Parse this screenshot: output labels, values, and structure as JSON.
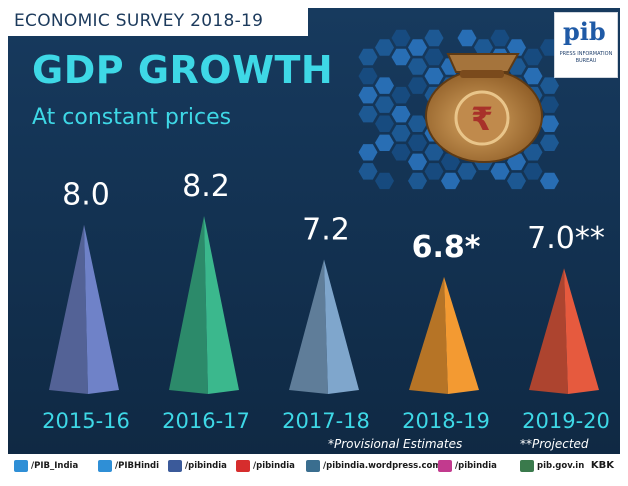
{
  "banner": "ECONOMIC SURVEY 2018-19",
  "header": {
    "title": "GDP GROWTH",
    "subtitle": "At constant prices"
  },
  "logo": {
    "mark": "pib",
    "text": "PRESS INFORMATION BUREAU"
  },
  "chart_data": {
    "type": "bar",
    "title": "GDP GROWTH",
    "subtitle": "At constant prices",
    "categories": [
      "2015-16",
      "2016-17",
      "2017-18",
      "2018-19",
      "2019-20"
    ],
    "values": [
      8.0,
      8.2,
      7.2,
      6.8,
      7.0
    ],
    "value_labels": [
      "8.0",
      "8.2",
      "7.2",
      "6.8*",
      "7.0**"
    ],
    "colors": [
      "#6f82c8",
      "#3bb88d",
      "#7fa6cc",
      "#f39a32",
      "#e65a3e"
    ],
    "notes": [
      "*Provisional Estimates",
      "**Projected"
    ]
  },
  "footer": {
    "items": [
      {
        "icon": "twitter-icon",
        "label": "/PIB_India",
        "color": "#2f8fd6"
      },
      {
        "icon": "twitter-icon",
        "label": "/PIBHindi",
        "color": "#2f8fd6"
      },
      {
        "icon": "facebook-icon",
        "label": "/pibindia",
        "color": "#3b5a9a"
      },
      {
        "icon": "youtube-icon",
        "label": "/pibindia",
        "color": "#d62d2d"
      },
      {
        "icon": "wordpress-icon",
        "label": "/pibindia.wordpress.com",
        "color": "#3a6e8f"
      },
      {
        "icon": "instagram-icon",
        "label": "/pibindia",
        "color": "#c23a8e"
      },
      {
        "icon": "globe-icon",
        "label": "pib.gov.in",
        "color": "#3a7a4c"
      }
    ],
    "credit": "KBK"
  }
}
